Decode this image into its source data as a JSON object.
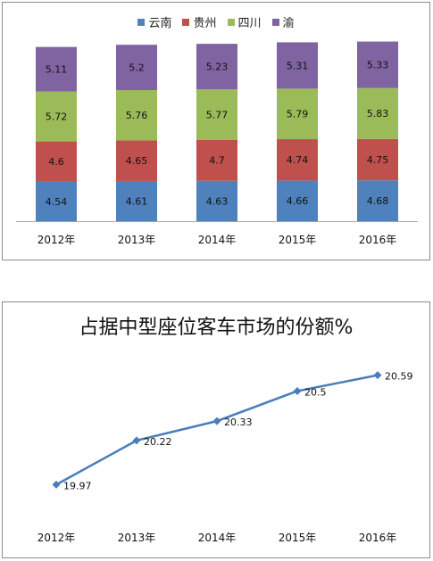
{
  "chart_data": [
    {
      "type": "bar",
      "stacked": true,
      "categories": [
        "2012年",
        "2013年",
        "2014年",
        "2015年",
        "2016年"
      ],
      "series": [
        {
          "name": "云南",
          "color": "#4f81bd",
          "values": [
            4.54,
            4.61,
            4.63,
            4.66,
            4.68
          ]
        },
        {
          "name": "贵州",
          "color": "#c0504d",
          "values": [
            4.6,
            4.65,
            4.7,
            4.74,
            4.75
          ]
        },
        {
          "name": "四川",
          "color": "#9bbb59",
          "values": [
            5.72,
            5.76,
            5.77,
            5.79,
            5.83
          ]
        },
        {
          "name": "渝",
          "color": "#8064a2",
          "values": [
            5.11,
            5.2,
            5.23,
            5.31,
            5.33
          ]
        }
      ],
      "title": "",
      "legend_position": "top",
      "grid": false,
      "ylim": [
        0,
        23
      ]
    },
    {
      "type": "line",
      "title": "占据中型座位客车市场的份额%",
      "categories": [
        "2012年",
        "2013年",
        "2014年",
        "2015年",
        "2016年"
      ],
      "series": [
        {
          "color": "#4a7ebb",
          "values": [
            19.97,
            20.22,
            20.33,
            20.5,
            20.59
          ]
        }
      ],
      "grid": false,
      "ylim": [
        19.8,
        20.75
      ]
    }
  ]
}
